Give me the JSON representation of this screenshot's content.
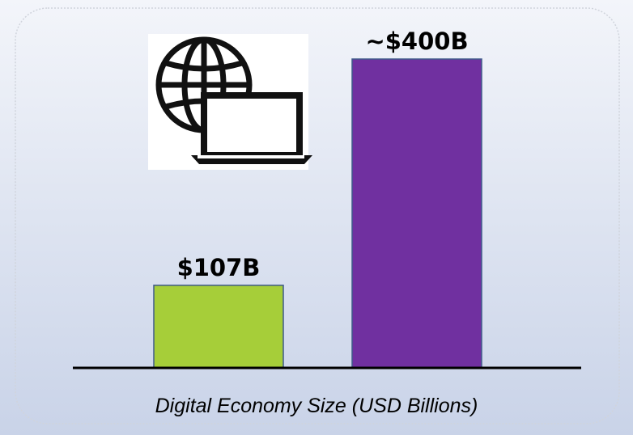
{
  "chart_data": {
    "type": "bar",
    "x_label": "Digital Economy Size (USD Billions)",
    "categories": [
      null,
      null
    ],
    "values": [
      107,
      400
    ],
    "value_labels": [
      "$107B",
      "~$400B"
    ],
    "colors": [
      "#a6ce39",
      "#7030a0"
    ]
  }
}
